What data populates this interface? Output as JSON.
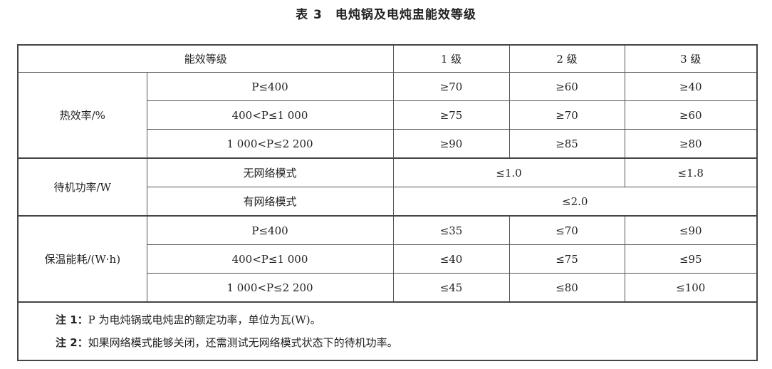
{
  "title": "表 3　电炖锅及电炖盅能效等级",
  "header": {
    "label": "能效等级",
    "grades": [
      "1 级",
      "2 级",
      "3 级"
    ]
  },
  "thermal": {
    "label": "热效率/%",
    "rows": [
      {
        "cond": "P≤400",
        "v": [
          "≥70",
          "≥60",
          "≥40"
        ]
      },
      {
        "cond": "400<P≤1 000",
        "v": [
          "≥75",
          "≥70",
          "≥60"
        ]
      },
      {
        "cond": "1 000<P≤2 200",
        "v": [
          "≥90",
          "≥85",
          "≥80"
        ]
      }
    ]
  },
  "standby": {
    "label": "待机功率/W",
    "rows": [
      {
        "cond": "无网络模式",
        "v12": "≤1.0",
        "v3": "≤1.8"
      },
      {
        "cond": "有网络模式",
        "v": "≤2.0"
      }
    ]
  },
  "keepwarm": {
    "label": "保温能耗/(W·h)",
    "rows": [
      {
        "cond": "P≤400",
        "v": [
          "≤35",
          "≤70",
          "≤90"
        ]
      },
      {
        "cond": "400<P≤1 000",
        "v": [
          "≤40",
          "≤75",
          "≤95"
        ]
      },
      {
        "cond": "1 000<P≤2 200",
        "v": [
          "≤45",
          "≤80",
          "≤100"
        ]
      }
    ]
  },
  "notes": [
    {
      "label": "注 1：",
      "text": "P 为电炖锅或电炖盅的额定功率，单位为瓦(W)。"
    },
    {
      "label": "注 2：",
      "text": "如果网络模式能够关闭，还需测试无网络模式状态下的待机功率。"
    }
  ]
}
